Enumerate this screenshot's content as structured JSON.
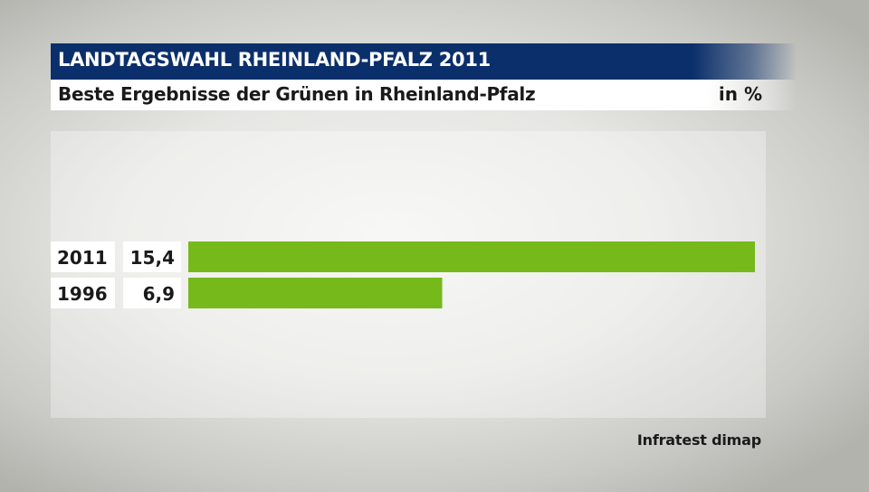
{
  "header": {
    "title": "LANDTAGSWAHL RHEINLAND-PFALZ 2011",
    "subtitle": "Beste Ergebnisse der Grünen in Rheinland-Pfalz",
    "unit": "in %"
  },
  "source": "Infratest dimap",
  "chart_data": {
    "type": "bar",
    "orientation": "horizontal",
    "categories": [
      "2011",
      "1996"
    ],
    "values": [
      15.4,
      6.9
    ],
    "value_labels": [
      "15,4",
      "6,9"
    ],
    "title": "LANDTAGSWAHL RHEINLAND-PFALZ 2011",
    "subtitle": "Beste Ergebnisse der Grünen in Rheinland-Pfalz",
    "unit": "in %",
    "xlim": [
      0,
      15.4
    ],
    "grid": false,
    "legend": "none",
    "bar_color": "#76b91b"
  }
}
